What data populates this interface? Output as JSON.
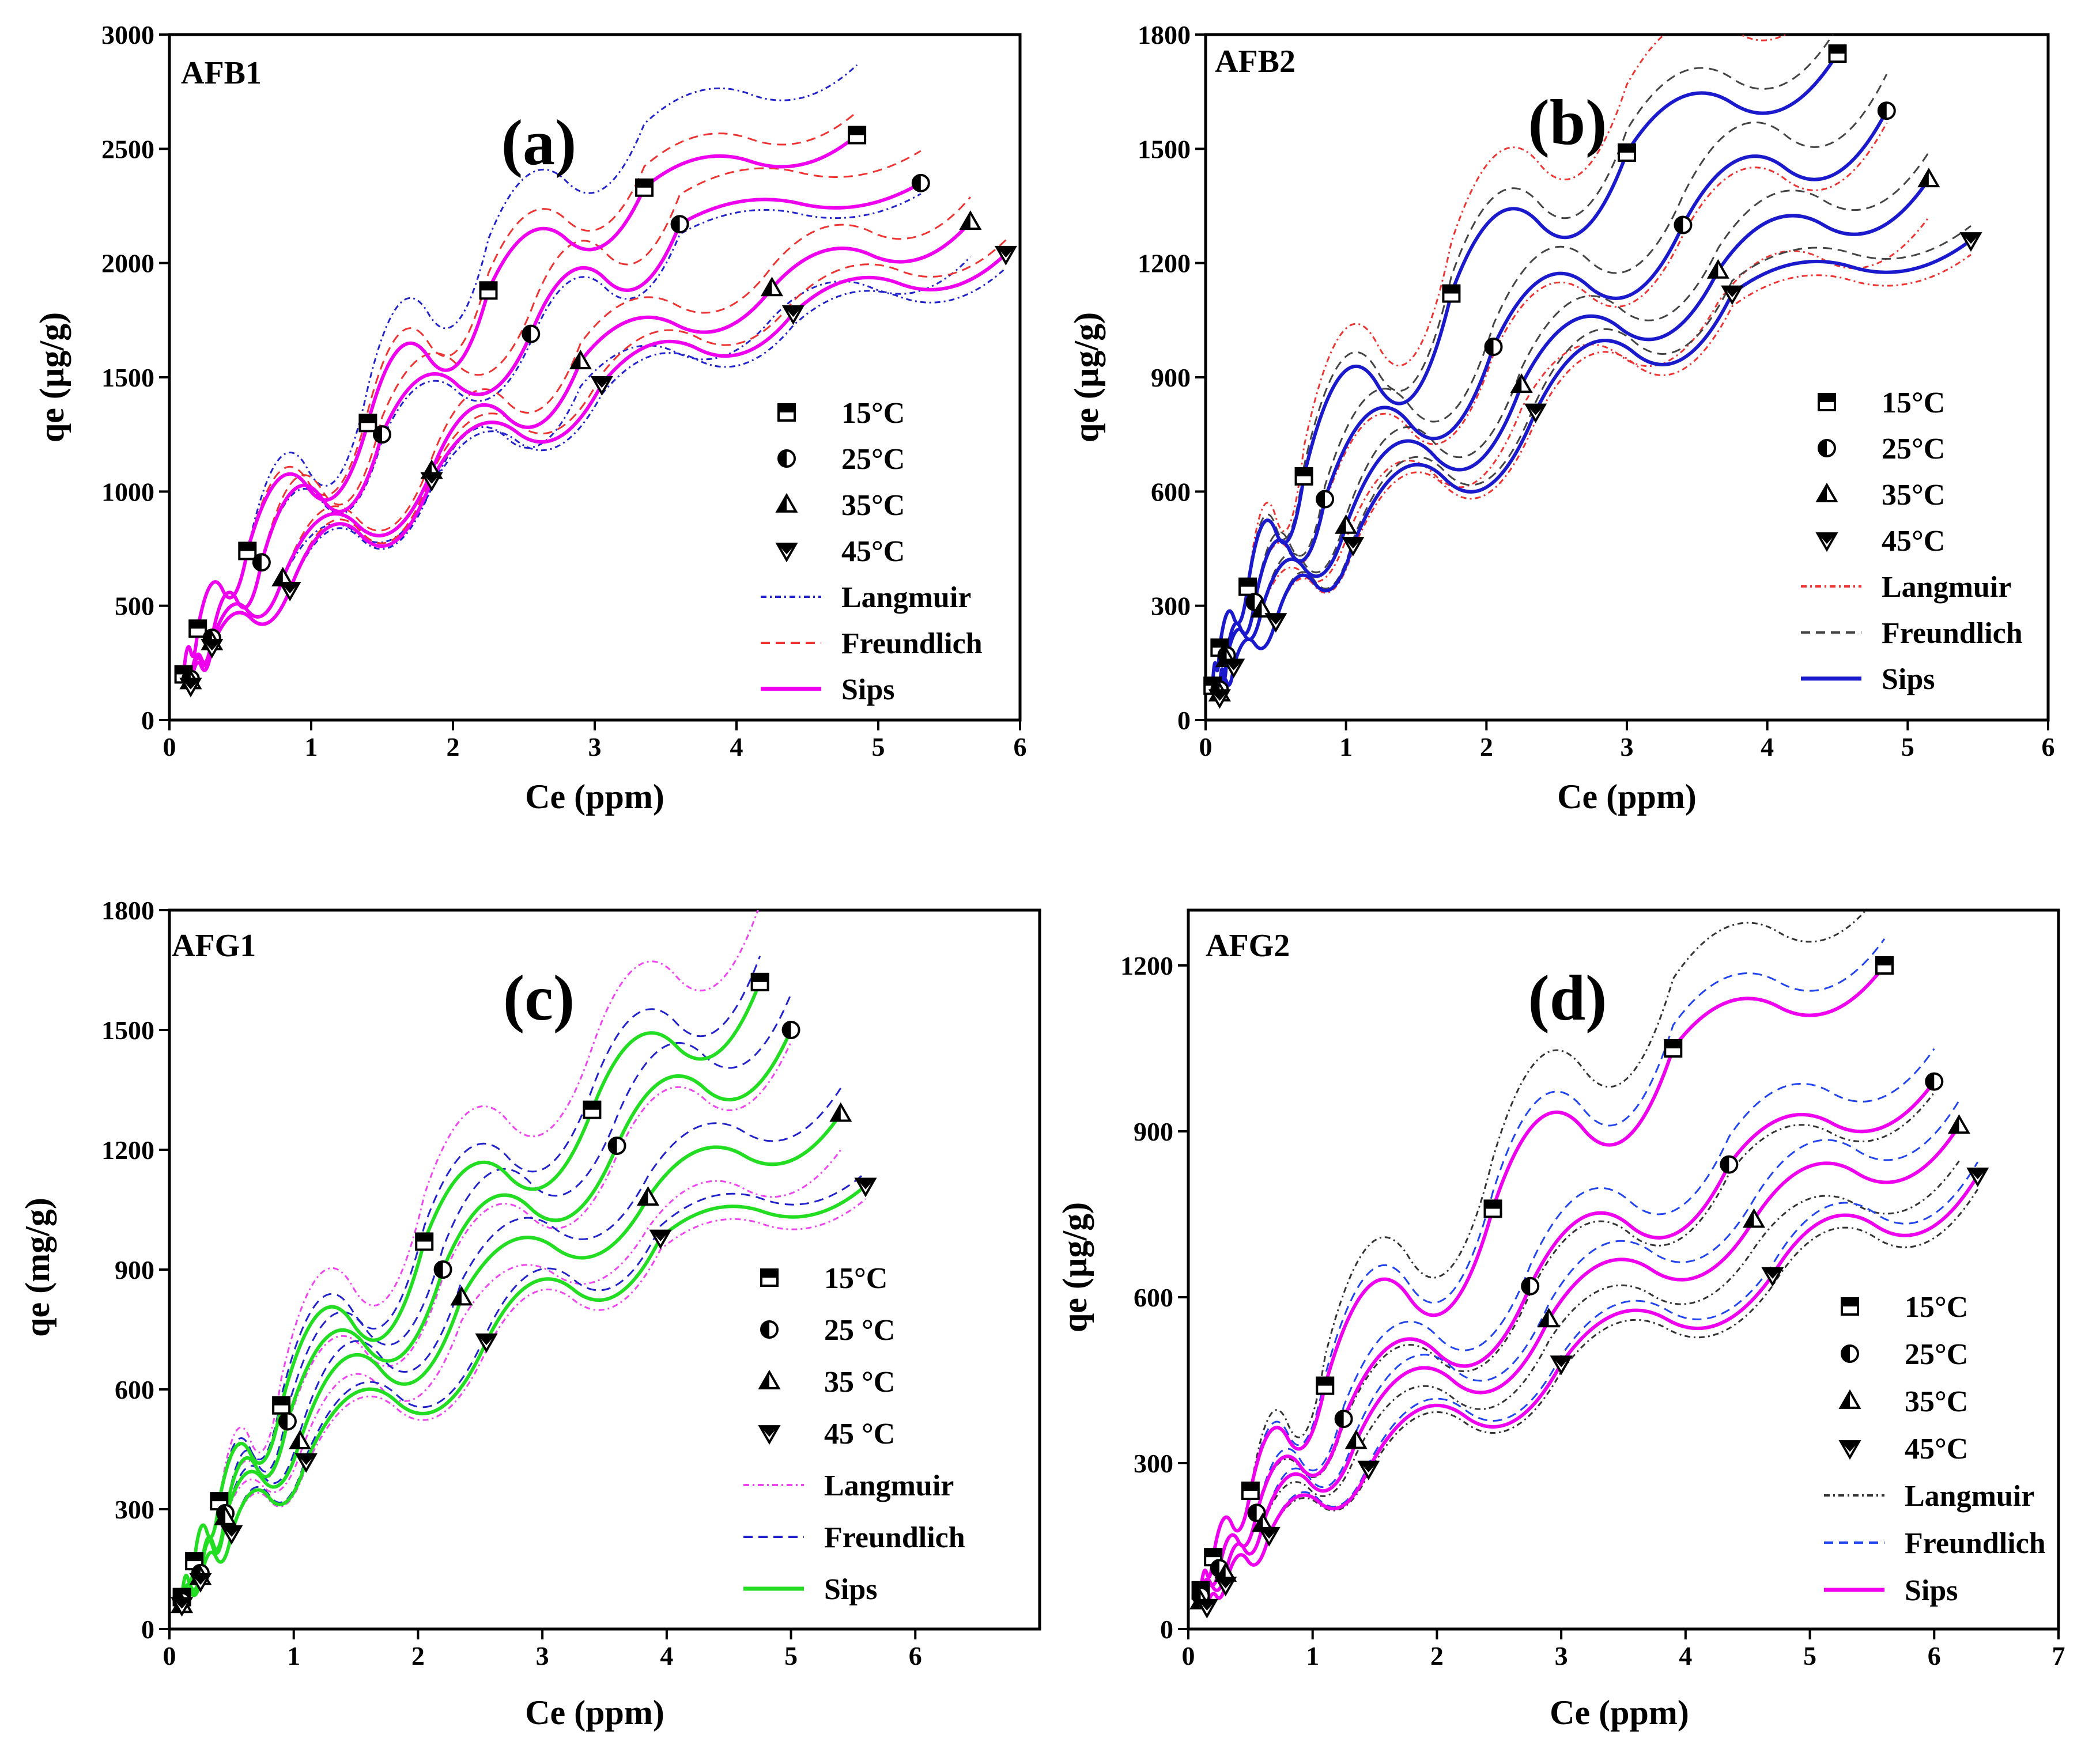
{
  "chart_data": [
    {
      "panel": "(a)",
      "type": "scatter",
      "annotation": "AFB1",
      "xlabel": "Ce (ppm)",
      "ylabel": "qe (µg/g)",
      "xlim": [
        0,
        6
      ],
      "ylim": [
        0,
        3000
      ],
      "xticks": [
        "0",
        "1",
        "2",
        "3",
        "4",
        "5",
        "6"
      ],
      "yticks": [
        "0",
        "500",
        "1000",
        "1500",
        "2000",
        "2500",
        "3000"
      ],
      "legend": [
        "15°C",
        "25°C",
        "35°C",
        "45°C",
        "Langmuir",
        "Freundlich",
        "Sips"
      ],
      "colors": {
        "langmuir": "#2222cc",
        "freundlich": "#ee3333",
        "sips": "#ee00ee"
      },
      "series": [
        {
          "name": "15°C",
          "x": [
            0.1,
            0.2,
            0.55,
            1.4,
            2.25,
            3.35,
            4.85
          ],
          "y": [
            200,
            400,
            740,
            1300,
            1880,
            2330,
            2560
          ]
        },
        {
          "name": "25°C",
          "x": [
            0.15,
            0.3,
            0.65,
            1.5,
            2.55,
            3.6,
            5.3
          ],
          "y": [
            180,
            360,
            690,
            1250,
            1690,
            2170,
            2350
          ]
        },
        {
          "name": "35°C",
          "x": [
            0.15,
            0.3,
            0.8,
            1.85,
            2.9,
            4.25,
            5.65
          ],
          "y": [
            170,
            340,
            620,
            1090,
            1570,
            1890,
            2180
          ]
        },
        {
          "name": "45°C",
          "x": [
            0.15,
            0.3,
            0.85,
            1.85,
            3.05,
            4.4,
            5.9
          ],
          "y": [
            150,
            320,
            570,
            1050,
            1470,
            1780,
            2040
          ]
        }
      ]
    },
    {
      "panel": "(b)",
      "type": "scatter",
      "annotation": "AFB2",
      "xlabel": "Ce (ppm)",
      "ylabel": "qe (µg/g)",
      "xlim": [
        0,
        6
      ],
      "ylim": [
        0,
        1800
      ],
      "xticks": [
        "0",
        "1",
        "2",
        "3",
        "4",
        "5",
        "6"
      ],
      "yticks": [
        "0",
        "300",
        "600",
        "900",
        "1200",
        "1500",
        "1800"
      ],
      "legend": [
        "15°C",
        "25°C",
        "35°C",
        "45°C",
        "Langmuir",
        "Freundlich",
        "Sips"
      ],
      "colors": {
        "langmuir": "#ee3333",
        "freundlich": "#444444",
        "sips": "#1a1acc"
      },
      "series": [
        {
          "name": "15°C",
          "x": [
            0.05,
            0.1,
            0.3,
            0.7,
            1.75,
            3.0,
            4.5
          ],
          "y": [
            90,
            190,
            350,
            640,
            1120,
            1490,
            1750
          ]
        },
        {
          "name": "25°C",
          "x": [
            0.1,
            0.15,
            0.35,
            0.85,
            2.05,
            3.4,
            4.85
          ],
          "y": [
            80,
            170,
            310,
            580,
            980,
            1300,
            1600
          ]
        },
        {
          "name": "35°C",
          "x": [
            0.1,
            0.15,
            0.4,
            1.0,
            2.25,
            3.65,
            5.15
          ],
          "y": [
            70,
            160,
            290,
            510,
            880,
            1180,
            1420
          ]
        },
        {
          "name": "45°C",
          "x": [
            0.1,
            0.2,
            0.5,
            1.05,
            2.35,
            3.75,
            5.45
          ],
          "y": [
            60,
            140,
            260,
            460,
            810,
            1120,
            1260
          ]
        }
      ]
    },
    {
      "panel": "(c)",
      "type": "scatter",
      "annotation": "AFG1",
      "xlabel": "Ce (ppm)",
      "ylabel": "qe (mg/g)",
      "xlim": [
        0,
        7
      ],
      "ylim": [
        0,
        1800
      ],
      "xticks": [
        "0",
        "1",
        "2",
        "3",
        "4",
        "5",
        "6"
      ],
      "yticks": [
        "0",
        "300",
        "600",
        "900",
        "1200",
        "1500",
        "1800"
      ],
      "legend": [
        "15°C",
        "25 °C",
        "35 °C",
        "45 °C",
        "Langmuir",
        "Freundlich",
        "Sips"
      ],
      "colors": {
        "langmuir": "#ee44ee",
        "freundlich": "#2222cc",
        "sips": "#22dd22"
      },
      "series": [
        {
          "name": "15°C",
          "x": [
            0.1,
            0.2,
            0.4,
            0.9,
            2.05,
            3.4,
            4.75
          ],
          "y": [
            80,
            170,
            320,
            560,
            970,
            1300,
            1620
          ]
        },
        {
          "name": "25 °C",
          "x": [
            0.1,
            0.25,
            0.45,
            0.95,
            2.2,
            3.6,
            5.0
          ],
          "y": [
            70,
            140,
            290,
            520,
            900,
            1210,
            1500
          ]
        },
        {
          "name": "35 °C",
          "x": [
            0.1,
            0.25,
            0.45,
            1.05,
            2.35,
            3.85,
            5.4
          ],
          "y": [
            60,
            130,
            280,
            470,
            830,
            1080,
            1290
          ]
        },
        {
          "name": "45 °C",
          "x": [
            0.1,
            0.25,
            0.5,
            1.1,
            2.55,
            3.95,
            5.6
          ],
          "y": [
            60,
            120,
            240,
            420,
            720,
            980,
            1110
          ]
        }
      ]
    },
    {
      "panel": "(d)",
      "type": "scatter",
      "annotation": "AFG2",
      "xlabel": "Ce (ppm)",
      "ylabel": "qe (µg/g)",
      "xlim": [
        0,
        7
      ],
      "ylim": [
        0,
        1300
      ],
      "xticks": [
        "0",
        "1",
        "2",
        "3",
        "4",
        "5",
        "6",
        "7"
      ],
      "yticks": [
        "0",
        "300",
        "600",
        "900",
        "1200"
      ],
      "legend": [
        "15°C",
        "25°C",
        "35°C",
        "45°C",
        "Langmuir",
        "Freundlich",
        "Sips"
      ],
      "colors": {
        "langmuir": "#333333",
        "freundlich": "#2244ee",
        "sips": "#ee00ee"
      },
      "series": [
        {
          "name": "15°C",
          "x": [
            0.1,
            0.2,
            0.5,
            1.1,
            2.45,
            3.9,
            5.6
          ],
          "y": [
            70,
            130,
            250,
            440,
            760,
            1050,
            1200
          ]
        },
        {
          "name": "25°C",
          "x": [
            0.1,
            0.25,
            0.55,
            1.25,
            2.75,
            4.35,
            6.0
          ],
          "y": [
            60,
            110,
            210,
            380,
            620,
            840,
            990
          ]
        },
        {
          "name": "35°C",
          "x": [
            0.1,
            0.3,
            0.6,
            1.35,
            2.9,
            4.55,
            6.2
          ],
          "y": [
            50,
            100,
            190,
            340,
            560,
            740,
            910
          ]
        },
        {
          "name": "45°C",
          "x": [
            0.15,
            0.3,
            0.65,
            1.45,
            3.0,
            4.7,
            6.35
          ],
          "y": [
            40,
            80,
            170,
            290,
            480,
            640,
            820
          ]
        }
      ]
    }
  ]
}
